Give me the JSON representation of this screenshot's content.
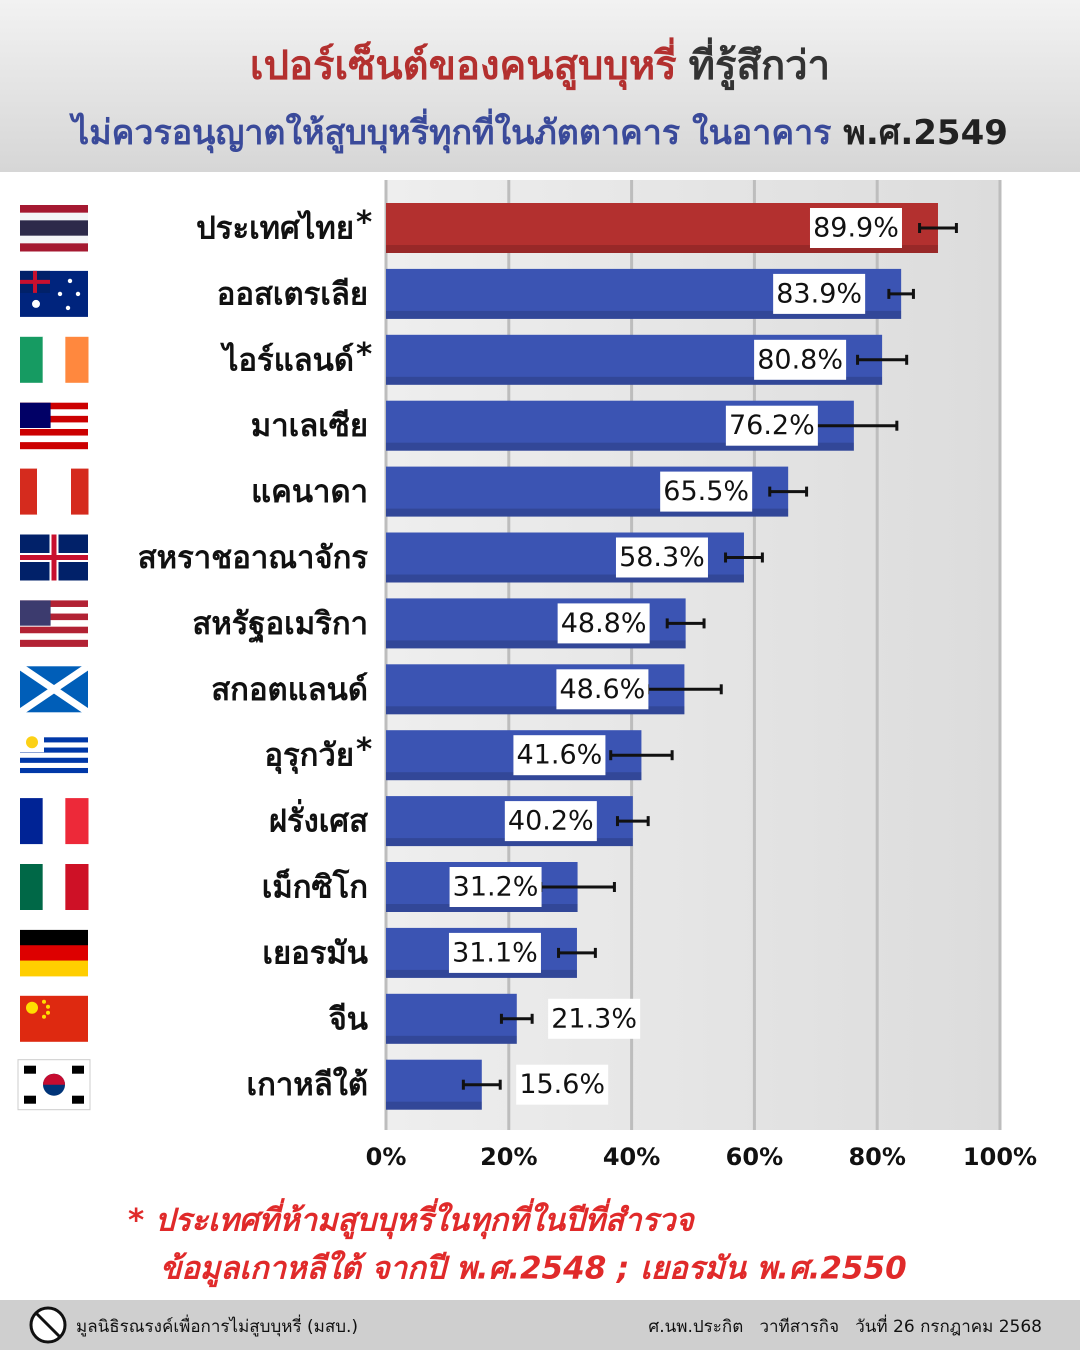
{
  "chart_data": {
    "type": "bar",
    "title": {
      "line1": [
        "เปอร์เซ็นต์ของคนสูบบุหรี่",
        "ที่รู้สึกว่า"
      ],
      "line2": [
        "ไม่ควรอนุญาตให้สูบบุหรี่ทุกที่ในภัตตาคาร ในอาคาร",
        "พ.ศ.2549"
      ]
    },
    "categories": [
      "ประเทศไทย",
      "ออสเตรเลีย",
      "ไอร์แลนด์",
      "มาเลเซีย",
      "แคนาดา",
      "สหราชอาณาจักร",
      "สหรัฐอเมริกา",
      "สกอตแลนด์",
      "อุรุกวัย",
      "ฝรั่งเศส",
      "เม็กซิโก",
      "เยอรมัน",
      "จีน",
      "เกาหลีใต้"
    ],
    "markers": [
      "*",
      null,
      "*",
      null,
      null,
      null,
      null,
      null,
      "*",
      null,
      null,
      null,
      null,
      null
    ],
    "values": [
      89.9,
      83.9,
      80.8,
      76.2,
      65.5,
      58.3,
      48.8,
      48.6,
      41.6,
      40.2,
      31.2,
      31.1,
      21.3,
      15.6
    ],
    "value_labels": [
      "89.9%",
      "83.9%",
      "80.8%",
      "76.2%",
      "65.5%",
      "58.3%",
      "48.8%",
      "48.6%",
      "41.6%",
      "40.2%",
      "31.2%",
      "31.1%",
      "21.3%",
      "15.6%"
    ],
    "errors": [
      3,
      2,
      4,
      7,
      3,
      3,
      3,
      6,
      5,
      2.5,
      6,
      3,
      2.5,
      3
    ],
    "colors": [
      "#b3302f",
      "#3b54b3",
      "#3b54b3",
      "#3b54b3",
      "#3b54b3",
      "#3b54b3",
      "#3b54b3",
      "#3b54b3",
      "#3b54b3",
      "#3b54b3",
      "#3b54b3",
      "#3b54b3",
      "#3b54b3",
      "#3b54b3"
    ],
    "xlim": [
      0,
      100
    ],
    "xticks": [
      {
        "value": 0,
        "label": "0%"
      },
      {
        "value": 20,
        "label": "20%"
      },
      {
        "value": 40,
        "label": "40%"
      },
      {
        "value": 60,
        "label": "60%"
      },
      {
        "value": 80,
        "label": "80%"
      },
      {
        "value": 100,
        "label": "100%"
      }
    ],
    "grid": true,
    "footnotes": [
      "*  ประเทศที่ห้ามสูบบุหรี่ในทุกที่ในปีที่สำรวจ",
      "ข้อมูลเกาหลีใต้ จากปี พ.ศ.2548 ; เยอรมัน พ.ศ.2550"
    ],
    "footer": {
      "left": "มูลนิธิรณรงค์เพื่อการไม่สูบบุหรี่ (มสบ.)",
      "right": "ศ.นพ.ประกิต   วาทีสารกิจ   วันที่ 26 กรกฎาคม 2568"
    }
  }
}
